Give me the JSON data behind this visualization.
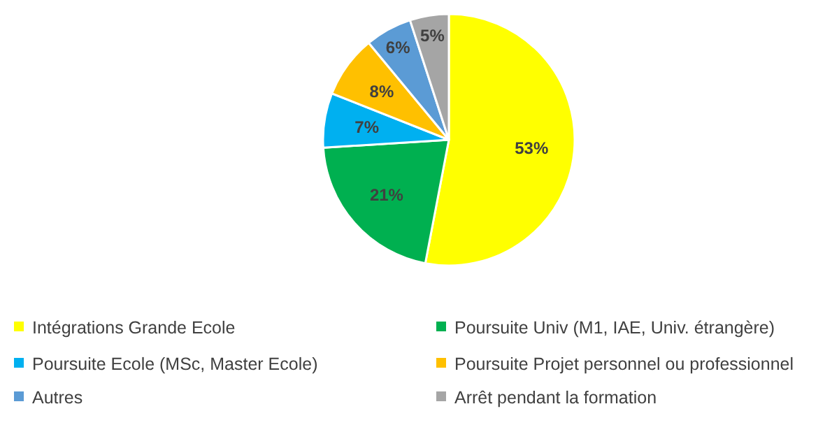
{
  "chart_data": {
    "type": "pie",
    "categories": [
      "Intégrations Grande Ecole",
      "Poursuite Univ (M1, IAE, Univ. étrangère)",
      "Poursuite Ecole (MSc, Master Ecole)",
      "Poursuite Projet personnel ou professionnel",
      "Autres",
      "Arrêt pendant la formation"
    ],
    "values": [
      53,
      21,
      7,
      8,
      6,
      5
    ],
    "colors": [
      "#ffff00",
      "#00b050",
      "#00b0f0",
      "#ffc000",
      "#5b9bd5",
      "#a5a5a5"
    ],
    "value_labels": [
      "53%",
      "21%",
      "7%",
      "8%",
      "6%",
      "5%"
    ],
    "legend": "bottom"
  }
}
